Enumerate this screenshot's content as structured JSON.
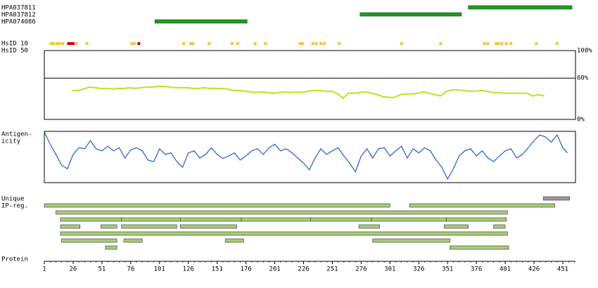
{
  "chart_data": {
    "type": "protein",
    "xlabel": "Protein",
    "xlim": [
      1,
      462
    ],
    "xticks": [
      1,
      26,
      51,
      76,
      101,
      126,
      151,
      176,
      201,
      226,
      251,
      276,
      301,
      326,
      351,
      376,
      401,
      426,
      451
    ],
    "antibodies": [
      {
        "name": "HPA037811",
        "start": 369,
        "end": 459,
        "color": "#229922"
      },
      {
        "name": "HPA037812",
        "start": 275,
        "end": 363,
        "color": "#229922"
      },
      {
        "name": "HPA074086",
        "start": 97,
        "end": 177,
        "color": "#229922"
      }
    ],
    "hsid10": {
      "label": "HsID 10",
      "positions": [
        7,
        9,
        12,
        14,
        17,
        22,
        24,
        26,
        29,
        38,
        77,
        79,
        83,
        122,
        128,
        130,
        144,
        164,
        169,
        184,
        193,
        223,
        225,
        234,
        237,
        241,
        244,
        257,
        311,
        345,
        383,
        386,
        393,
        395,
        398,
        402,
        406,
        428,
        446
      ],
      "colors": [
        "#f5c242",
        "#f5c242",
        "#f5c242",
        "#f5c242",
        "#f5c242",
        "#cc0000",
        "#cc0000",
        "#cc0000",
        "#f5c242",
        "#f5c242",
        "#f5c242",
        "#f5c242",
        "#cc0000",
        "#f5c242",
        "#f5c242",
        "#f5c242",
        "#f5c242",
        "#f5c242",
        "#f5c242",
        "#f5c242",
        "#f5c242",
        "#f5c242",
        "#f5c242",
        "#f5c242",
        "#f5c242",
        "#f5c242",
        "#f5c242",
        "#f5c242",
        "#f5c242",
        "#f5c242",
        "#f5c242",
        "#f5c242",
        "#f5c242",
        "#f5c242",
        "#f5c242",
        "#f5c242",
        "#f5c242",
        "#f5c242",
        "#f5c242"
      ]
    },
    "hsid50": {
      "label": "HsID 50",
      "color": "#b5e61d",
      "ylim": [
        0,
        100
      ],
      "yticks": [
        {
          "value": 100,
          "label": "100%"
        },
        {
          "value": 60,
          "label": "60%"
        },
        {
          "value": 0,
          "label": "0%"
        }
      ],
      "reference_line": 60,
      "x": [
        25,
        30,
        35,
        40,
        45,
        50,
        55,
        60,
        65,
        70,
        75,
        80,
        85,
        90,
        95,
        100,
        105,
        110,
        115,
        120,
        125,
        130,
        135,
        140,
        145,
        150,
        155,
        160,
        165,
        170,
        175,
        180,
        185,
        190,
        195,
        200,
        205,
        210,
        215,
        220,
        225,
        230,
        235,
        240,
        245,
        250,
        255,
        260,
        265,
        270,
        275,
        280,
        285,
        290,
        295,
        300,
        305,
        310,
        315,
        320,
        325,
        330,
        335,
        340,
        345,
        350,
        355,
        360,
        365,
        370,
        375,
        380,
        385,
        390,
        395,
        400,
        405,
        410,
        415,
        420,
        425,
        430,
        435
      ],
      "values": [
        42,
        42,
        44,
        47,
        46,
        45,
        45,
        44,
        45,
        45,
        46,
        45,
        46,
        47,
        47,
        48,
        48,
        47,
        46,
        46,
        46,
        45,
        45,
        46,
        45,
        45,
        45,
        44,
        42,
        42,
        41,
        40,
        39,
        40,
        39,
        38,
        39,
        40,
        39,
        40,
        39,
        41,
        42,
        42,
        41,
        41,
        38,
        31,
        38,
        38,
        39,
        40,
        38,
        36,
        33,
        32,
        32,
        36,
        37,
        37,
        38,
        40,
        38,
        36,
        34,
        41,
        43,
        43,
        42,
        41,
        41,
        42,
        41,
        39,
        39,
        38,
        38,
        38,
        38,
        38,
        34,
        36,
        34
      ]
    },
    "antigenicity": {
      "label_lines": [
        "Antigen-",
        "icity"
      ],
      "color": "#3366cc",
      "ylim": [
        0,
        1
      ],
      "x": [
        1,
        6,
        11,
        16,
        21,
        26,
        31,
        36,
        41,
        46,
        51,
        56,
        61,
        66,
        71,
        76,
        81,
        86,
        91,
        96,
        101,
        106,
        111,
        116,
        121,
        126,
        131,
        136,
        141,
        146,
        151,
        156,
        161,
        166,
        171,
        176,
        181,
        186,
        191,
        196,
        201,
        206,
        211,
        216,
        221,
        226,
        231,
        236,
        241,
        246,
        251,
        256,
        261,
        266,
        271,
        276,
        281,
        286,
        291,
        296,
        301,
        306,
        311,
        316,
        321,
        326,
        331,
        336,
        341,
        346,
        351,
        356,
        361,
        366,
        371,
        376,
        381,
        386,
        391,
        396,
        401,
        406,
        411,
        416,
        421,
        426,
        431,
        436,
        441,
        446,
        451,
        455
      ],
      "values": [
        0.99,
        0.75,
        0.55,
        0.34,
        0.27,
        0.55,
        0.68,
        0.66,
        0.82,
        0.66,
        0.62,
        0.71,
        0.62,
        0.68,
        0.48,
        0.64,
        0.68,
        0.62,
        0.44,
        0.41,
        0.66,
        0.55,
        0.58,
        0.41,
        0.3,
        0.58,
        0.62,
        0.48,
        0.55,
        0.68,
        0.55,
        0.47,
        0.52,
        0.58,
        0.44,
        0.52,
        0.62,
        0.66,
        0.55,
        0.68,
        0.75,
        0.62,
        0.66,
        0.58,
        0.48,
        0.38,
        0.25,
        0.48,
        0.66,
        0.55,
        0.62,
        0.68,
        0.52,
        0.38,
        0.21,
        0.52,
        0.66,
        0.48,
        0.66,
        0.68,
        0.52,
        0.62,
        0.71,
        0.48,
        0.66,
        0.58,
        0.68,
        0.62,
        0.44,
        0.3,
        0.07,
        0.27,
        0.52,
        0.62,
        0.66,
        0.52,
        0.62,
        0.48,
        0.41,
        0.52,
        0.62,
        0.66,
        0.48,
        0.55,
        0.68,
        0.82,
        0.93,
        0.89,
        0.79,
        0.93,
        0.68,
        0.58
      ]
    },
    "unique": {
      "label_lines": [
        "Unique",
        "IP-reg."
      ],
      "color": "#a8cc78",
      "rows": [
        [
          {
            "start": 434,
            "end": 457,
            "color": "#999999"
          }
        ],
        [
          {
            "start": 1,
            "end": 301
          },
          {
            "start": 318,
            "end": 444
          }
        ],
        [
          {
            "start": 11,
            "end": 403
          }
        ],
        [
          {
            "start": 15,
            "end": 68
          },
          {
            "start": 68,
            "end": 119
          },
          {
            "start": 119,
            "end": 172
          },
          {
            "start": 172,
            "end": 232
          },
          {
            "start": 232,
            "end": 285
          },
          {
            "start": 285,
            "end": 350
          },
          {
            "start": 350,
            "end": 402
          }
        ],
        [
          {
            "start": 15,
            "end": 32
          },
          {
            "start": 50,
            "end": 64
          },
          {
            "start": 68,
            "end": 116
          },
          {
            "start": 119,
            "end": 168
          },
          {
            "start": 274,
            "end": 292
          },
          {
            "start": 348,
            "end": 369
          },
          {
            "start": 391,
            "end": 401
          }
        ],
        [
          {
            "start": 15,
            "end": 403
          }
        ],
        [
          {
            "start": 16,
            "end": 64
          },
          {
            "start": 70,
            "end": 86
          },
          {
            "start": 158,
            "end": 174
          },
          {
            "start": 286,
            "end": 353
          }
        ],
        [
          {
            "start": 54,
            "end": 64
          },
          {
            "start": 353,
            "end": 404
          }
        ]
      ]
    }
  }
}
